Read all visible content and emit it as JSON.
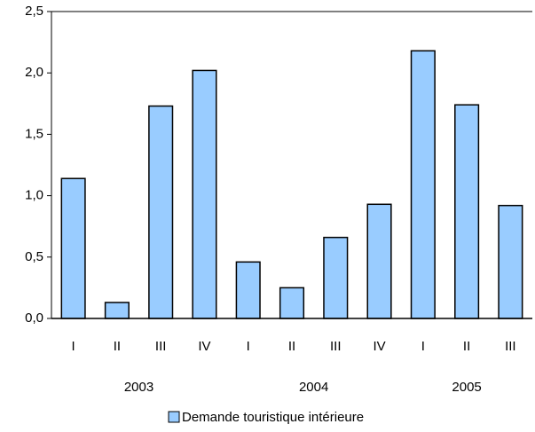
{
  "chart_data": {
    "type": "bar",
    "groups": [
      {
        "label": "2003",
        "categories": [
          "I",
          "II",
          "III",
          "IV"
        ]
      },
      {
        "label": "2004",
        "categories": [
          "I",
          "II",
          "III",
          "IV"
        ]
      },
      {
        "label": "2005",
        "categories": [
          "I",
          "II",
          "III"
        ]
      }
    ],
    "series": [
      {
        "name": "Demande touristique intérieure",
        "color": "#99ccff",
        "values": [
          1.14,
          0.13,
          1.73,
          2.02,
          0.46,
          0.25,
          0.66,
          0.93,
          2.18,
          1.74,
          0.92
        ]
      }
    ],
    "ylim": [
      0,
      2.5
    ],
    "yticks": [
      {
        "value": 0,
        "label": "0,0"
      },
      {
        "value": 0.5,
        "label": "0,5"
      },
      {
        "value": 1,
        "label": "1,0"
      },
      {
        "value": 1.5,
        "label": "1,5"
      },
      {
        "value": 2,
        "label": "2,0"
      },
      {
        "value": 2.5,
        "label": "2,5"
      }
    ],
    "grid": false,
    "legend": "bottom"
  }
}
